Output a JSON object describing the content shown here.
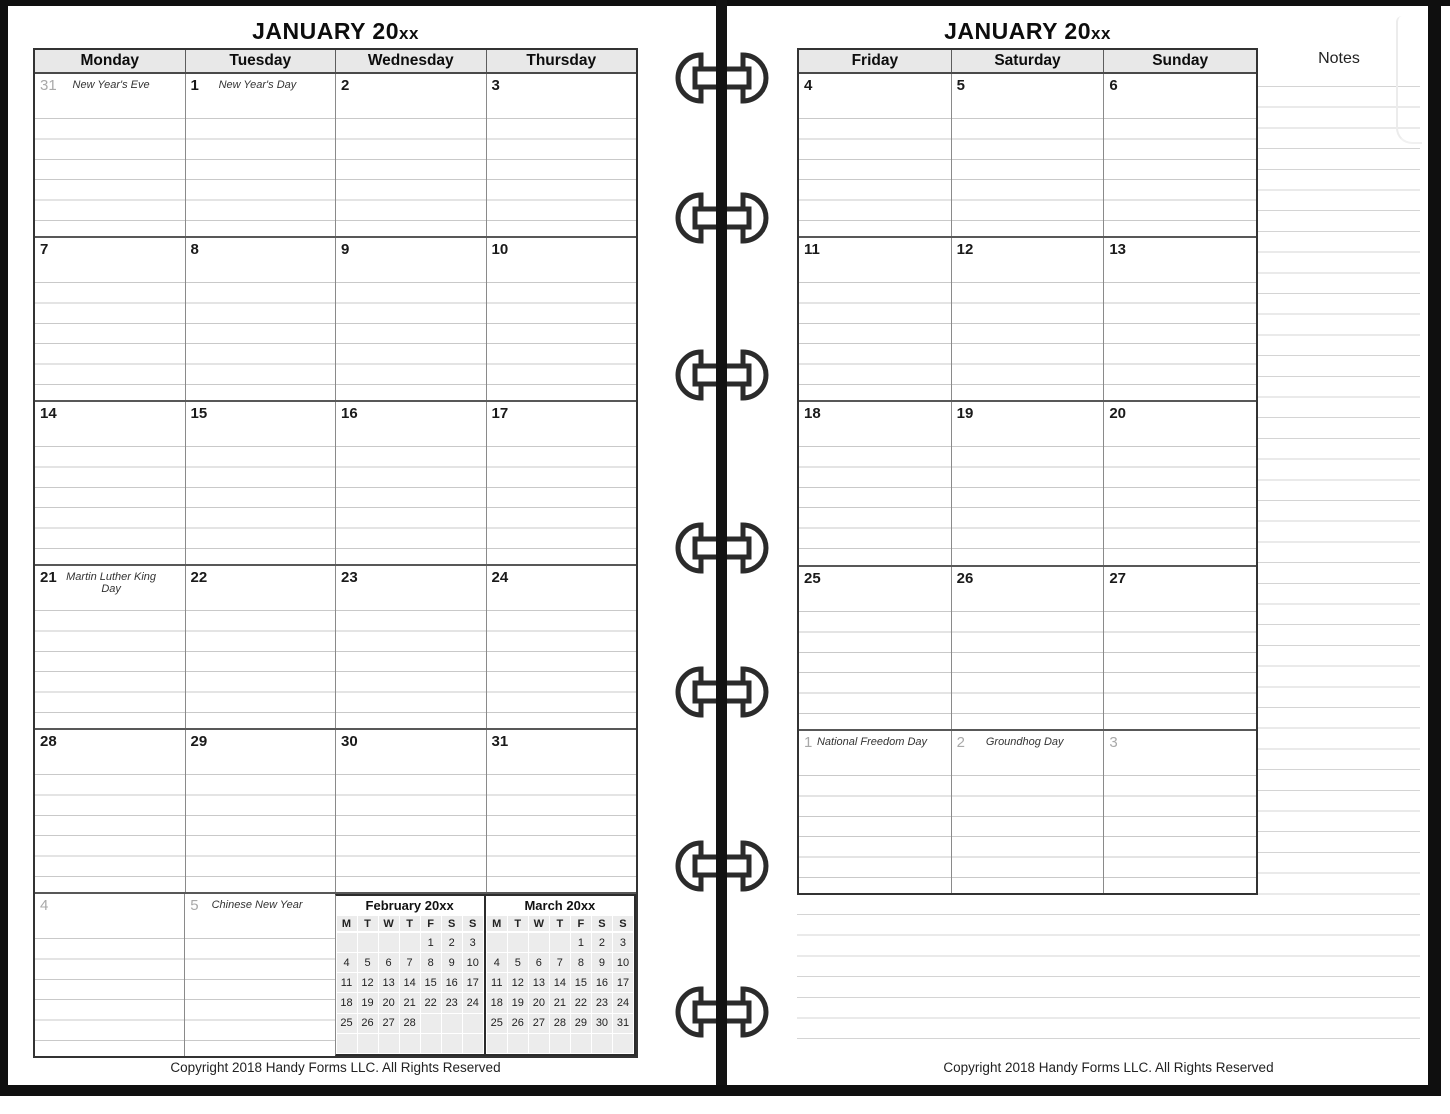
{
  "binder": {
    "ring_count": 7
  },
  "colors": {
    "page_bg": "#ffffff",
    "frame": "#0f0f0f",
    "header_bg": "#e8e8e8",
    "grid_heavy": "#585858",
    "grid_light": "#c9c9c9",
    "notes_line": "#d4d4d4",
    "outside_day_number": "#a9a9a9",
    "mini_cell_bg": "#ececec"
  },
  "left_page": {
    "title": "JANUARY 20",
    "title_suffix": "xx",
    "day_headers": [
      "Monday",
      "Tuesday",
      "Wednesday",
      "Thursday"
    ],
    "weeks": [
      {
        "days": [
          {
            "num": "31",
            "holiday": "New Year's Eve",
            "outside": true
          },
          {
            "num": "1",
            "holiday": "New Year's Day"
          },
          {
            "num": "2"
          },
          {
            "num": "3"
          }
        ]
      },
      {
        "days": [
          {
            "num": "7"
          },
          {
            "num": "8"
          },
          {
            "num": "9"
          },
          {
            "num": "10"
          }
        ]
      },
      {
        "days": [
          {
            "num": "14"
          },
          {
            "num": "15"
          },
          {
            "num": "16"
          },
          {
            "num": "17"
          }
        ]
      },
      {
        "days": [
          {
            "num": "21",
            "holiday": "Martin Luther King Day"
          },
          {
            "num": "22"
          },
          {
            "num": "23"
          },
          {
            "num": "24"
          }
        ]
      },
      {
        "days": [
          {
            "num": "28"
          },
          {
            "num": "29"
          },
          {
            "num": "30"
          },
          {
            "num": "31"
          }
        ]
      },
      {
        "days": [
          {
            "num": "4",
            "outside": true
          },
          {
            "num": "5",
            "holiday": "Chinese New Year",
            "outside": true
          }
        ]
      }
    ],
    "copyright": "Copyright 2018 Handy Forms LLC. All Rights Reserved"
  },
  "mini_calendars": [
    {
      "title": "February 20xx",
      "day_letters": [
        "M",
        "T",
        "W",
        "T",
        "F",
        "S",
        "S"
      ],
      "cells": [
        "",
        "",
        "",
        "",
        "1",
        "2",
        "3",
        "4",
        "5",
        "6",
        "7",
        "8",
        "9",
        "10",
        "11",
        "12",
        "13",
        "14",
        "15",
        "16",
        "17",
        "18",
        "19",
        "20",
        "21",
        "22",
        "23",
        "24",
        "25",
        "26",
        "27",
        "28",
        "",
        "",
        "",
        "",
        "",
        "",
        "",
        "",
        "",
        ""
      ]
    },
    {
      "title": "March 20xx",
      "day_letters": [
        "M",
        "T",
        "W",
        "T",
        "F",
        "S",
        "S"
      ],
      "cells": [
        "",
        "",
        "",
        "",
        "1",
        "2",
        "3",
        "4",
        "5",
        "6",
        "7",
        "8",
        "9",
        "10",
        "11",
        "12",
        "13",
        "14",
        "15",
        "16",
        "17",
        "18",
        "19",
        "20",
        "21",
        "22",
        "23",
        "24",
        "25",
        "26",
        "27",
        "28",
        "29",
        "30",
        "31",
        "",
        "",
        "",
        "",
        "",
        "",
        ""
      ]
    }
  ],
  "right_page": {
    "title": "JANUARY 20",
    "title_suffix": "xx",
    "day_headers": [
      "Friday",
      "Saturday",
      "Sunday"
    ],
    "notes_label": "Notes",
    "weeks": [
      {
        "days": [
          {
            "num": "4"
          },
          {
            "num": "5"
          },
          {
            "num": "6"
          }
        ]
      },
      {
        "days": [
          {
            "num": "11"
          },
          {
            "num": "12"
          },
          {
            "num": "13"
          }
        ]
      },
      {
        "days": [
          {
            "num": "18"
          },
          {
            "num": "19"
          },
          {
            "num": "20"
          }
        ]
      },
      {
        "days": [
          {
            "num": "25"
          },
          {
            "num": "26"
          },
          {
            "num": "27"
          }
        ]
      },
      {
        "days": [
          {
            "num": "1",
            "holiday": "National Freedom Day",
            "outside": true
          },
          {
            "num": "2",
            "holiday": "Groundhog Day",
            "outside": true
          },
          {
            "num": "3",
            "outside": true
          }
        ]
      }
    ],
    "copyright": "Copyright 2018 Handy Forms LLC. All Rights Reserved"
  }
}
